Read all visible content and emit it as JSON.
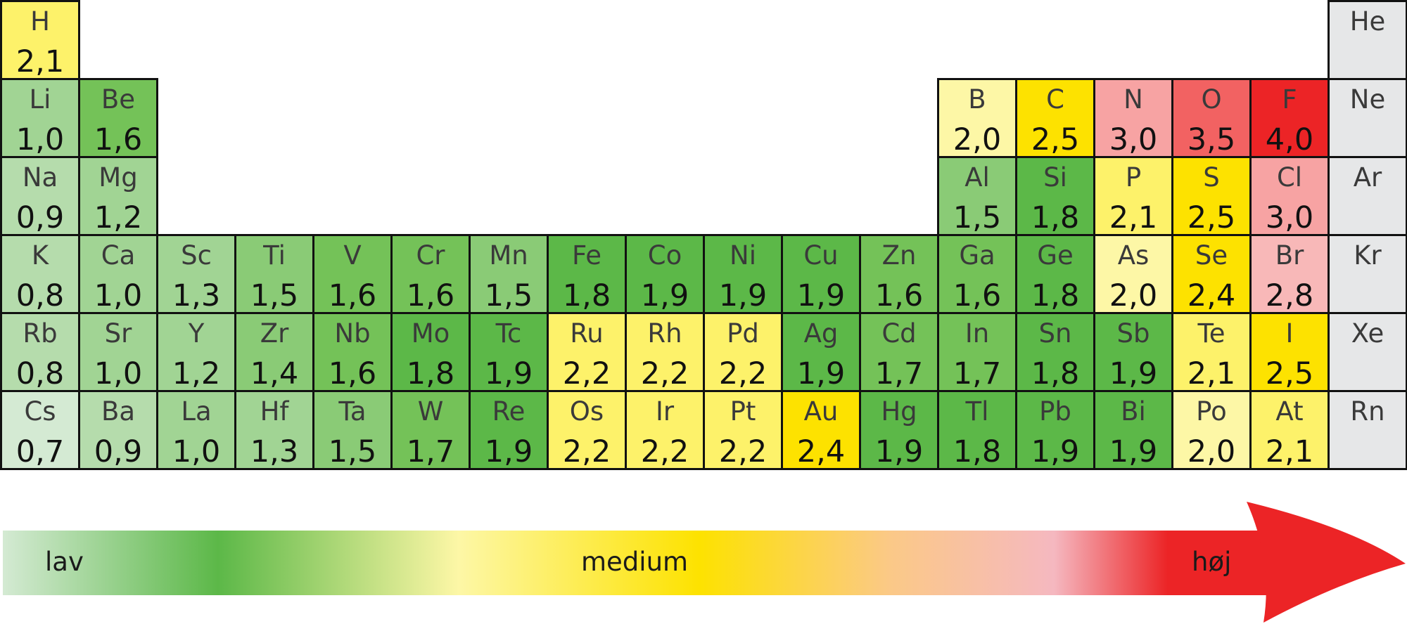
{
  "palette": {
    "g1": "#d4ead3",
    "g2": "#b5dcac",
    "g3": "#a1d494",
    "g4": "#8acb76",
    "g5": "#74c258",
    "g6": "#5cb848",
    "y1": "#fdf7a6",
    "y2": "#fdf26a",
    "y3": "#fde200",
    "p1": "#f8b8b8",
    "p2": "#f7a3a3",
    "r1": "#f26262",
    "r2": "#ec2426",
    "noble": "#e6e7e8"
  },
  "elements": [
    {
      "symbol": "H",
      "en": "2,1",
      "row": 1,
      "col": 1,
      "color": "y2"
    },
    {
      "symbol": "He",
      "en": "",
      "row": 1,
      "col": 18,
      "color": "noble"
    },
    {
      "symbol": "Li",
      "en": "1,0",
      "row": 2,
      "col": 1,
      "color": "g3"
    },
    {
      "symbol": "Be",
      "en": "1,6",
      "row": 2,
      "col": 2,
      "color": "g5"
    },
    {
      "symbol": "B",
      "en": "2,0",
      "row": 2,
      "col": 13,
      "color": "y1"
    },
    {
      "symbol": "C",
      "en": "2,5",
      "row": 2,
      "col": 14,
      "color": "y3"
    },
    {
      "symbol": "N",
      "en": "3,0",
      "row": 2,
      "col": 15,
      "color": "p2"
    },
    {
      "symbol": "O",
      "en": "3,5",
      "row": 2,
      "col": 16,
      "color": "r1"
    },
    {
      "symbol": "F",
      "en": "4,0",
      "row": 2,
      "col": 17,
      "color": "r2"
    },
    {
      "symbol": "Ne",
      "en": "",
      "row": 2,
      "col": 18,
      "color": "noble"
    },
    {
      "symbol": "Na",
      "en": "0,9",
      "row": 3,
      "col": 1,
      "color": "g2"
    },
    {
      "symbol": "Mg",
      "en": "1,2",
      "row": 3,
      "col": 2,
      "color": "g3"
    },
    {
      "symbol": "Al",
      "en": "1,5",
      "row": 3,
      "col": 13,
      "color": "g4"
    },
    {
      "symbol": "Si",
      "en": "1,8",
      "row": 3,
      "col": 14,
      "color": "g6"
    },
    {
      "symbol": "P",
      "en": "2,1",
      "row": 3,
      "col": 15,
      "color": "y2"
    },
    {
      "symbol": "S",
      "en": "2,5",
      "row": 3,
      "col": 16,
      "color": "y3"
    },
    {
      "symbol": "Cl",
      "en": "3,0",
      "row": 3,
      "col": 17,
      "color": "p2"
    },
    {
      "symbol": "Ar",
      "en": "",
      "row": 3,
      "col": 18,
      "color": "noble"
    },
    {
      "symbol": "K",
      "en": "0,8",
      "row": 4,
      "col": 1,
      "color": "g2"
    },
    {
      "symbol": "Ca",
      "en": "1,0",
      "row": 4,
      "col": 2,
      "color": "g3"
    },
    {
      "symbol": "Sc",
      "en": "1,3",
      "row": 4,
      "col": 3,
      "color": "g3"
    },
    {
      "symbol": "Ti",
      "en": "1,5",
      "row": 4,
      "col": 4,
      "color": "g4"
    },
    {
      "symbol": "V",
      "en": "1,6",
      "row": 4,
      "col": 5,
      "color": "g5"
    },
    {
      "symbol": "Cr",
      "en": "1,6",
      "row": 4,
      "col": 6,
      "color": "g5"
    },
    {
      "symbol": "Mn",
      "en": "1,5",
      "row": 4,
      "col": 7,
      "color": "g4"
    },
    {
      "symbol": "Fe",
      "en": "1,8",
      "row": 4,
      "col": 8,
      "color": "g6"
    },
    {
      "symbol": "Co",
      "en": "1,9",
      "row": 4,
      "col": 9,
      "color": "g6"
    },
    {
      "symbol": "Ni",
      "en": "1,9",
      "row": 4,
      "col": 10,
      "color": "g6"
    },
    {
      "symbol": "Cu",
      "en": "1,9",
      "row": 4,
      "col": 11,
      "color": "g6"
    },
    {
      "symbol": "Zn",
      "en": "1,6",
      "row": 4,
      "col": 12,
      "color": "g5"
    },
    {
      "symbol": "Ga",
      "en": "1,6",
      "row": 4,
      "col": 13,
      "color": "g5"
    },
    {
      "symbol": "Ge",
      "en": "1,8",
      "row": 4,
      "col": 14,
      "color": "g6"
    },
    {
      "symbol": "As",
      "en": "2,0",
      "row": 4,
      "col": 15,
      "color": "y1"
    },
    {
      "symbol": "Se",
      "en": "2,4",
      "row": 4,
      "col": 16,
      "color": "y3"
    },
    {
      "symbol": "Br",
      "en": "2,8",
      "row": 4,
      "col": 17,
      "color": "p1"
    },
    {
      "symbol": "Kr",
      "en": "",
      "row": 4,
      "col": 18,
      "color": "noble"
    },
    {
      "symbol": "Rb",
      "en": "0,8",
      "row": 5,
      "col": 1,
      "color": "g2"
    },
    {
      "symbol": "Sr",
      "en": "1,0",
      "row": 5,
      "col": 2,
      "color": "g3"
    },
    {
      "symbol": "Y",
      "en": "1,2",
      "row": 5,
      "col": 3,
      "color": "g3"
    },
    {
      "symbol": "Zr",
      "en": "1,4",
      "row": 5,
      "col": 4,
      "color": "g4"
    },
    {
      "symbol": "Nb",
      "en": "1,6",
      "row": 5,
      "col": 5,
      "color": "g5"
    },
    {
      "symbol": "Mo",
      "en": "1,8",
      "row": 5,
      "col": 6,
      "color": "g6"
    },
    {
      "symbol": "Tc",
      "en": "1,9",
      "row": 5,
      "col": 7,
      "color": "g6"
    },
    {
      "symbol": "Ru",
      "en": "2,2",
      "row": 5,
      "col": 8,
      "color": "y2"
    },
    {
      "symbol": "Rh",
      "en": "2,2",
      "row": 5,
      "col": 9,
      "color": "y2"
    },
    {
      "symbol": "Pd",
      "en": "2,2",
      "row": 5,
      "col": 10,
      "color": "y2"
    },
    {
      "symbol": "Ag",
      "en": "1,9",
      "row": 5,
      "col": 11,
      "color": "g6"
    },
    {
      "symbol": "Cd",
      "en": "1,7",
      "row": 5,
      "col": 12,
      "color": "g5"
    },
    {
      "symbol": "In",
      "en": "1,7",
      "row": 5,
      "col": 13,
      "color": "g5"
    },
    {
      "symbol": "Sn",
      "en": "1,8",
      "row": 5,
      "col": 14,
      "color": "g6"
    },
    {
      "symbol": "Sb",
      "en": "1,9",
      "row": 5,
      "col": 15,
      "color": "g6"
    },
    {
      "symbol": "Te",
      "en": "2,1",
      "row": 5,
      "col": 16,
      "color": "y2"
    },
    {
      "symbol": "I",
      "en": "2,5",
      "row": 5,
      "col": 17,
      "color": "y3"
    },
    {
      "symbol": "Xe",
      "en": "",
      "row": 5,
      "col": 18,
      "color": "noble"
    },
    {
      "symbol": "Cs",
      "en": "0,7",
      "row": 6,
      "col": 1,
      "color": "g1"
    },
    {
      "symbol": "Ba",
      "en": "0,9",
      "row": 6,
      "col": 2,
      "color": "g2"
    },
    {
      "symbol": "La",
      "en": "1,0",
      "row": 6,
      "col": 3,
      "color": "g3"
    },
    {
      "symbol": "Hf",
      "en": "1,3",
      "row": 6,
      "col": 4,
      "color": "g3"
    },
    {
      "symbol": "Ta",
      "en": "1,5",
      "row": 6,
      "col": 5,
      "color": "g4"
    },
    {
      "symbol": "W",
      "en": "1,7",
      "row": 6,
      "col": 6,
      "color": "g5"
    },
    {
      "symbol": "Re",
      "en": "1,9",
      "row": 6,
      "col": 7,
      "color": "g6"
    },
    {
      "symbol": "Os",
      "en": "2,2",
      "row": 6,
      "col": 8,
      "color": "y2"
    },
    {
      "symbol": "Ir",
      "en": "2,2",
      "row": 6,
      "col": 9,
      "color": "y2"
    },
    {
      "symbol": "Pt",
      "en": "2,2",
      "row": 6,
      "col": 10,
      "color": "y2"
    },
    {
      "symbol": "Au",
      "en": "2,4",
      "row": 6,
      "col": 11,
      "color": "y3"
    },
    {
      "symbol": "Hg",
      "en": "1,9",
      "row": 6,
      "col": 12,
      "color": "g6"
    },
    {
      "symbol": "Tl",
      "en": "1,8",
      "row": 6,
      "col": 13,
      "color": "g6"
    },
    {
      "symbol": "Pb",
      "en": "1,9",
      "row": 6,
      "col": 14,
      "color": "g6"
    },
    {
      "symbol": "Bi",
      "en": "1,9",
      "row": 6,
      "col": 15,
      "color": "g6"
    },
    {
      "symbol": "Po",
      "en": "2,0",
      "row": 6,
      "col": 16,
      "color": "y1"
    },
    {
      "symbol": "At",
      "en": "2,1",
      "row": 6,
      "col": 17,
      "color": "y2"
    },
    {
      "symbol": "Rn",
      "en": "",
      "row": 6,
      "col": 18,
      "color": "noble"
    }
  ],
  "scale": {
    "low_label": "lav",
    "mid_label": "medium",
    "high_label": "høj",
    "gradient_colors": [
      "#d4ead3",
      "#5cb848",
      "#fdf7a6",
      "#fde200",
      "#fbc987",
      "#f5b8c0",
      "#ec2426"
    ]
  }
}
